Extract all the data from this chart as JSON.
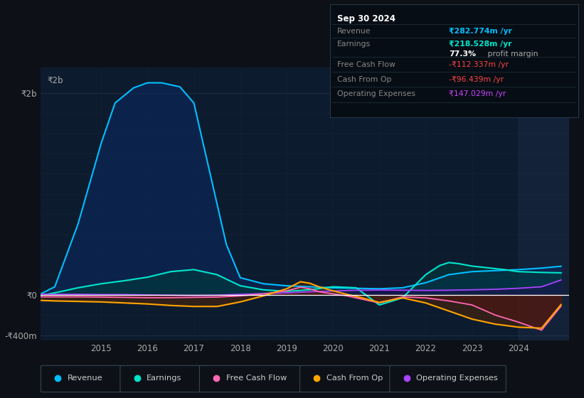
{
  "bg_color": "#0d1117",
  "plot_bg_color": "#0d1b2e",
  "xlabel_years": [
    "2015",
    "2016",
    "2017",
    "2018",
    "2019",
    "2020",
    "2021",
    "2022",
    "2023",
    "2024"
  ],
  "legend": [
    {
      "label": "Revenue",
      "color": "#00bfff"
    },
    {
      "label": "Earnings",
      "color": "#00e5cc"
    },
    {
      "label": "Free Cash Flow",
      "color": "#ff69b4"
    },
    {
      "label": "Cash From Op",
      "color": "#ffa500"
    },
    {
      "label": "Operating Expenses",
      "color": "#aa44ff"
    }
  ],
  "info_box": {
    "title": "Sep 30 2024",
    "rows": [
      {
        "label": "Revenue",
        "value": "₹282.774m /yr",
        "vcolor": "#00bfff",
        "bold": true
      },
      {
        "label": "Earnings",
        "value": "₹218.528m /yr",
        "vcolor": "#00e5cc",
        "bold": true
      },
      {
        "label": "",
        "value": "77.3%",
        "vcolor": "#ffffff",
        "bold": true,
        "suffix": " profit margin"
      },
      {
        "label": "Free Cash Flow",
        "value": "-₹112.337m /yr",
        "vcolor": "#ff4444",
        "bold": false
      },
      {
        "label": "Cash From Op",
        "value": "-₹96.439m /yr",
        "vcolor": "#ff4444",
        "bold": false
      },
      {
        "label": "Operating Expenses",
        "value": "₹147.029m /yr",
        "vcolor": "#cc44ff",
        "bold": false
      }
    ]
  },
  "revenue_x": [
    2013.7,
    2014.0,
    2014.5,
    2015.0,
    2015.3,
    2015.7,
    2016.0,
    2016.3,
    2016.7,
    2017.0,
    2017.3,
    2017.7,
    2018.0,
    2018.5,
    2019.0,
    2019.5,
    2020.0,
    2020.5,
    2021.0,
    2021.5,
    2022.0,
    2022.5,
    2023.0,
    2023.5,
    2024.0,
    2024.5,
    2024.92
  ],
  "revenue_y": [
    10,
    80,
    700,
    1500,
    1900,
    2050,
    2100,
    2100,
    2060,
    1900,
    1300,
    500,
    170,
    110,
    90,
    80,
    70,
    65,
    60,
    70,
    120,
    200,
    230,
    240,
    250,
    265,
    283
  ],
  "earnings_x": [
    2013.7,
    2014.0,
    2014.5,
    2015.0,
    2015.5,
    2016.0,
    2016.5,
    2017.0,
    2017.5,
    2018.0,
    2018.5,
    2019.0,
    2019.5,
    2020.0,
    2020.5,
    2021.0,
    2021.5,
    2022.0,
    2022.3,
    2022.5,
    2022.7,
    2023.0,
    2023.3,
    2023.7,
    2024.0,
    2024.5,
    2024.92
  ],
  "earnings_y": [
    -5,
    20,
    70,
    110,
    140,
    175,
    230,
    250,
    200,
    90,
    50,
    35,
    50,
    80,
    70,
    -100,
    -30,
    200,
    290,
    320,
    310,
    285,
    270,
    250,
    230,
    222,
    218
  ],
  "fcf_x": [
    2013.7,
    2014.0,
    2014.5,
    2015.0,
    2015.5,
    2016.0,
    2016.5,
    2017.0,
    2017.5,
    2018.0,
    2018.5,
    2019.0,
    2019.3,
    2019.5,
    2019.7,
    2020.0,
    2020.3,
    2020.5,
    2021.0,
    2021.5,
    2022.0,
    2022.5,
    2023.0,
    2023.5,
    2024.0,
    2024.5,
    2024.92
  ],
  "fcf_y": [
    -20,
    -20,
    -20,
    -22,
    -25,
    -28,
    -28,
    -25,
    -22,
    -10,
    10,
    40,
    75,
    60,
    30,
    10,
    -10,
    -30,
    -80,
    -20,
    -30,
    -60,
    -100,
    -200,
    -270,
    -350,
    -112
  ],
  "cashop_x": [
    2013.7,
    2014.0,
    2014.5,
    2015.0,
    2015.5,
    2016.0,
    2016.5,
    2017.0,
    2017.5,
    2018.0,
    2018.5,
    2019.0,
    2019.3,
    2019.5,
    2019.7,
    2020.0,
    2020.3,
    2020.5,
    2021.0,
    2021.5,
    2022.0,
    2022.5,
    2023.0,
    2023.5,
    2024.0,
    2024.5,
    2024.92
  ],
  "cashop_y": [
    -55,
    -60,
    -65,
    -70,
    -80,
    -90,
    -105,
    -115,
    -115,
    -70,
    -10,
    60,
    130,
    115,
    80,
    40,
    5,
    -15,
    -75,
    -30,
    -80,
    -160,
    -240,
    -290,
    -320,
    -330,
    -96
  ],
  "opex_x": [
    2013.7,
    2014.0,
    2014.5,
    2015.0,
    2015.5,
    2016.0,
    2016.5,
    2017.0,
    2017.5,
    2018.0,
    2018.5,
    2019.0,
    2019.5,
    2020.0,
    2020.5,
    2021.0,
    2021.5,
    2022.0,
    2022.5,
    2023.0,
    2023.5,
    2024.0,
    2024.5,
    2024.92
  ],
  "opex_y": [
    5,
    5,
    5,
    3,
    3,
    0,
    -3,
    -5,
    -3,
    5,
    12,
    20,
    30,
    38,
    45,
    48,
    46,
    44,
    46,
    50,
    55,
    65,
    80,
    147
  ],
  "ylim": [
    -450,
    2250
  ],
  "xlim": [
    2013.7,
    2025.1
  ],
  "y_tick_positions": [
    2000,
    0,
    -400
  ],
  "y_tick_labels": [
    "₹2b",
    "₹0",
    "-₹400m"
  ]
}
